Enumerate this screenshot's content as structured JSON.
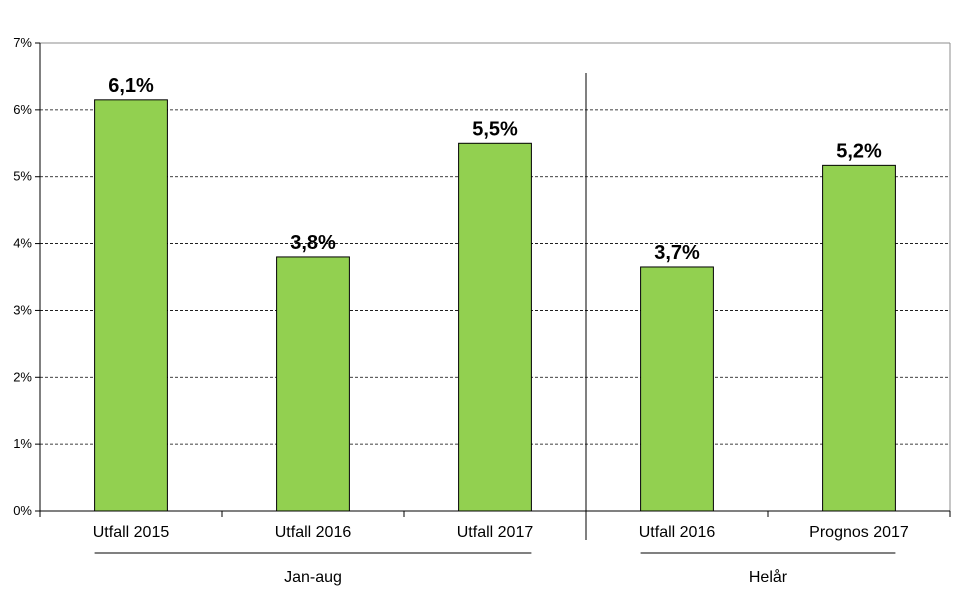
{
  "chart_data": {
    "type": "bar",
    "categories": [
      "Utfall 2015",
      "Utfall 2016",
      "Utfall 2017",
      "Utfall 2016",
      "Prognos 2017"
    ],
    "values": [
      6.15,
      3.8,
      5.5,
      3.65,
      5.17
    ],
    "data_labels": [
      "6,1%",
      "3,8%",
      "5,5%",
      "3,7%",
      "5,2%"
    ],
    "groups": [
      {
        "label": "Jan-aug",
        "categories": [
          0,
          1,
          2
        ]
      },
      {
        "label": "Helår",
        "categories": [
          3,
          4
        ]
      }
    ],
    "yticks": [
      0,
      1,
      2,
      3,
      4,
      5,
      6,
      7
    ],
    "ytick_labels": [
      "0%",
      "1%",
      "2%",
      "3%",
      "4%",
      "5%",
      "6%",
      "7%"
    ],
    "ylim": [
      0,
      7
    ],
    "grid": true,
    "bar_color": "#92d050",
    "bar_edge_color": "#000000"
  }
}
